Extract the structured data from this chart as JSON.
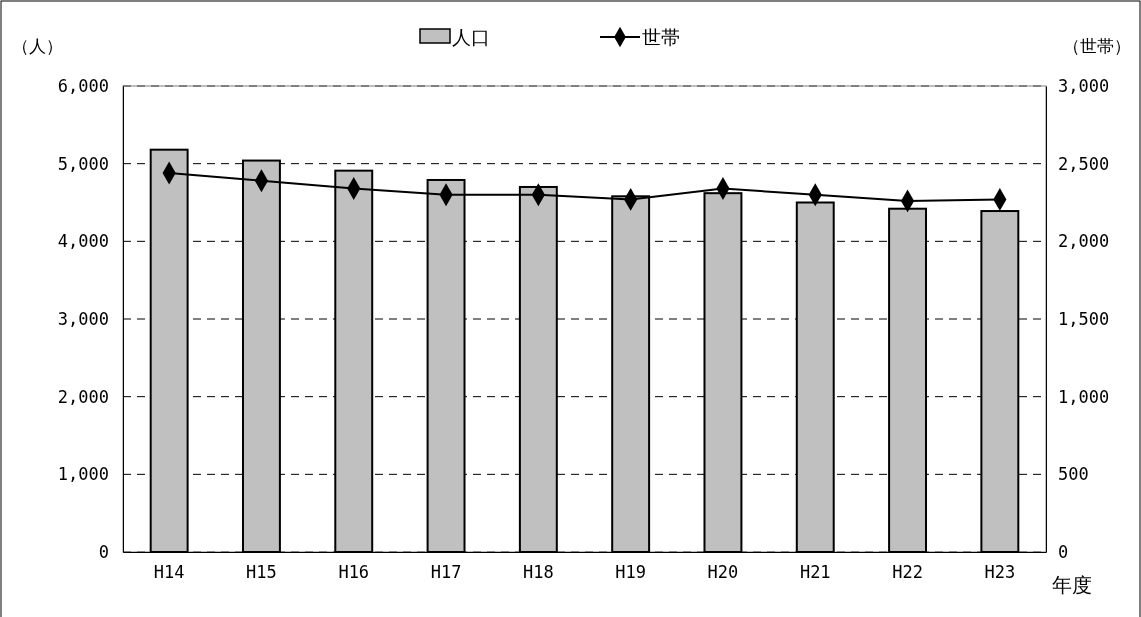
{
  "chart_data": {
    "type": "bar",
    "categories": [
      "H14",
      "H15",
      "H16",
      "H17",
      "H18",
      "H19",
      "H20",
      "H21",
      "H22",
      "H23"
    ],
    "series": [
      {
        "name": "人口",
        "color": "#c0c0c0",
        "values": [
          5180,
          5040,
          4910,
          4790,
          4700,
          4580,
          4620,
          4500,
          4420,
          4390
        ]
      },
      {
        "name": "世帯",
        "type": "line",
        "axis": "y2",
        "color": "#000000",
        "marker": "diamond",
        "values": [
          2440,
          2390,
          2340,
          2300,
          2300,
          2270,
          2340,
          2300,
          2260,
          2270
        ]
      }
    ],
    "ylabel": "（人）",
    "y2label": "（世帯）",
    "xlabel": "年度",
    "ylim": [
      0,
      6000
    ],
    "yticks": [
      0,
      {
        "value": 1000,
        "label": "1,000"
      },
      {
        "value": 2000,
        "label": "2,000"
      },
      {
        "value": 3000,
        "label": "3,000"
      },
      {
        "value": 4000,
        "label": "4,000"
      },
      {
        "value": 5000,
        "label": "5,000"
      },
      {
        "value": 6000,
        "label": "6,000"
      }
    ],
    "y2lim": [
      0,
      3000
    ],
    "y2ticks": [
      0,
      500,
      {
        "value": 1000,
        "label": "1,000"
      },
      {
        "value": 1500,
        "label": "1,500"
      },
      {
        "value": 2000,
        "label": "2,000"
      },
      {
        "value": 2500,
        "label": "2,500"
      },
      {
        "value": 3000,
        "label": "3,000"
      }
    ],
    "grid": "y",
    "legend": "top"
  }
}
